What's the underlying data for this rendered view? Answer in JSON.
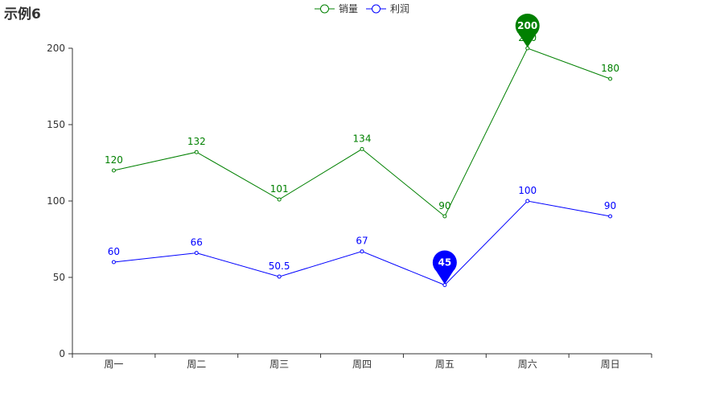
{
  "page": {
    "title": "示例6"
  },
  "chart_data": {
    "type": "line",
    "title": "示例6",
    "categories": [
      "周一",
      "周二",
      "周三",
      "周四",
      "周五",
      "周六",
      "周日"
    ],
    "ylim": [
      0,
      200
    ],
    "yticks": [
      0,
      50,
      100,
      150,
      200
    ],
    "grid": false,
    "legend_position": "top-center",
    "series": [
      {
        "name": "销量",
        "color": "#008000",
        "values": [
          120,
          132,
          101,
          134,
          90,
          200,
          180
        ],
        "labels": [
          "120",
          "132",
          "101",
          "134",
          "90",
          "200",
          "180"
        ],
        "marker": {
          "type": "max",
          "index": 5,
          "value": "200"
        }
      },
      {
        "name": "利润",
        "color": "#0000ff",
        "values": [
          60,
          66,
          50.5,
          67,
          45,
          100,
          90
        ],
        "labels": [
          "60",
          "66",
          "50.5",
          "67",
          "",
          "100",
          "90"
        ],
        "marker": {
          "type": "min",
          "index": 4,
          "value": "45"
        }
      }
    ]
  }
}
